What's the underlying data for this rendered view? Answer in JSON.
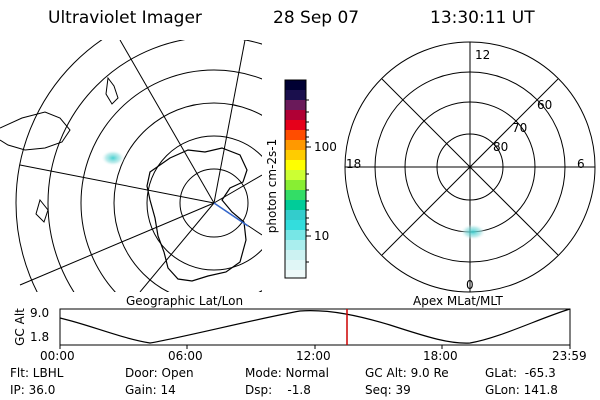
{
  "header": {
    "instrument": "Ultraviolet Imager",
    "date": "28 Sep 07",
    "time": "13:30:11 UT"
  },
  "geo_panel": {
    "label": "Geographic Lat/Lon"
  },
  "polar_panel": {
    "label": "Apex MLat/MLT",
    "mlt_labels": {
      "top": "12",
      "right": "6",
      "bottom": "0",
      "left": "18"
    },
    "lat_labels": [
      "60",
      "70",
      "80"
    ]
  },
  "colorbar": {
    "unit_label": "photon cm-2s-1",
    "tick_labels": [
      "100",
      "10"
    ],
    "scale": "log"
  },
  "timeline": {
    "axis_title": "GC Alt",
    "y_ticks": [
      "9.0",
      "1.8"
    ],
    "x_ticks": [
      "00:00",
      "06:00",
      "12:00",
      "18:00",
      "23:59"
    ],
    "current_marker_color": "#cc0000"
  },
  "info": {
    "flt": "Flt: LBHL",
    "ip": "IP: 36.0",
    "door": "Door: Open",
    "gain": "Gain: 14",
    "mode": "Mode: Normal",
    "dsp": "Dsp:    -1.8",
    "gc_alt": "GC Alt: 9.0 Re",
    "seq": "Seq: 39",
    "glat": "GLat:  -65.3",
    "glon": "GLon: 141.8"
  }
}
